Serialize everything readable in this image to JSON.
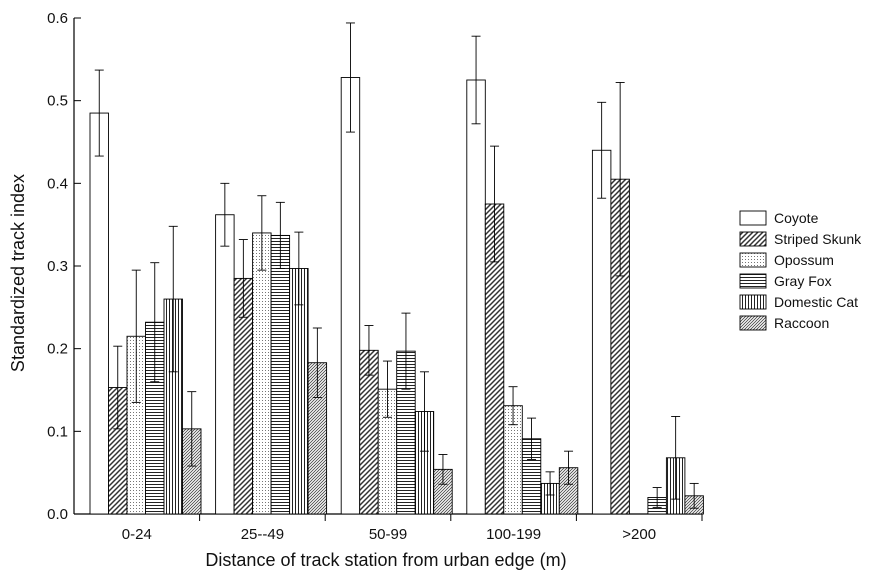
{
  "chart_data": {
    "type": "bar",
    "title": "",
    "xlabel": "Distance of track station from urban edge (m)",
    "ylabel": "Standardized track index",
    "ylim": [
      0,
      0.6
    ],
    "yticks": [
      "0.0",
      "0.1",
      "0.2",
      "0.3",
      "0.4",
      "0.5",
      "0.6"
    ],
    "categories": [
      "0-24",
      "25--49",
      "50-99",
      "100-199",
      ">200"
    ],
    "legend_position": "right",
    "grid": false,
    "series": [
      {
        "name": "Coyote",
        "pattern": "open",
        "values": [
          0.485,
          0.362,
          0.528,
          0.525,
          0.44
        ],
        "errors": [
          0.052,
          0.038,
          0.066,
          0.053,
          0.058
        ]
      },
      {
        "name": "Striped Skunk",
        "pattern": "diagonal-bold",
        "values": [
          0.153,
          0.285,
          0.198,
          0.375,
          0.405
        ],
        "errors": [
          0.05,
          0.047,
          0.03,
          0.07,
          0.117
        ]
      },
      {
        "name": "Opossum",
        "pattern": "dotted",
        "values": [
          0.215,
          0.34,
          0.151,
          0.131,
          0.0
        ],
        "errors": [
          0.08,
          0.045,
          0.034,
          0.023,
          0.0
        ]
      },
      {
        "name": "Gray Fox",
        "pattern": "horizontal",
        "values": [
          0.232,
          0.337,
          0.197,
          0.091,
          0.02
        ],
        "errors": [
          0.072,
          0.04,
          0.046,
          0.025,
          0.012
        ]
      },
      {
        "name": "Domestic Cat",
        "pattern": "vertical",
        "values": [
          0.26,
          0.297,
          0.124,
          0.037,
          0.068
        ],
        "errors": [
          0.088,
          0.044,
          0.048,
          0.014,
          0.05
        ]
      },
      {
        "name": "Raccoon",
        "pattern": "diagonal-fine",
        "values": [
          0.103,
          0.183,
          0.054,
          0.056,
          0.022
        ],
        "errors": [
          0.045,
          0.042,
          0.018,
          0.02,
          0.015
        ]
      }
    ]
  }
}
